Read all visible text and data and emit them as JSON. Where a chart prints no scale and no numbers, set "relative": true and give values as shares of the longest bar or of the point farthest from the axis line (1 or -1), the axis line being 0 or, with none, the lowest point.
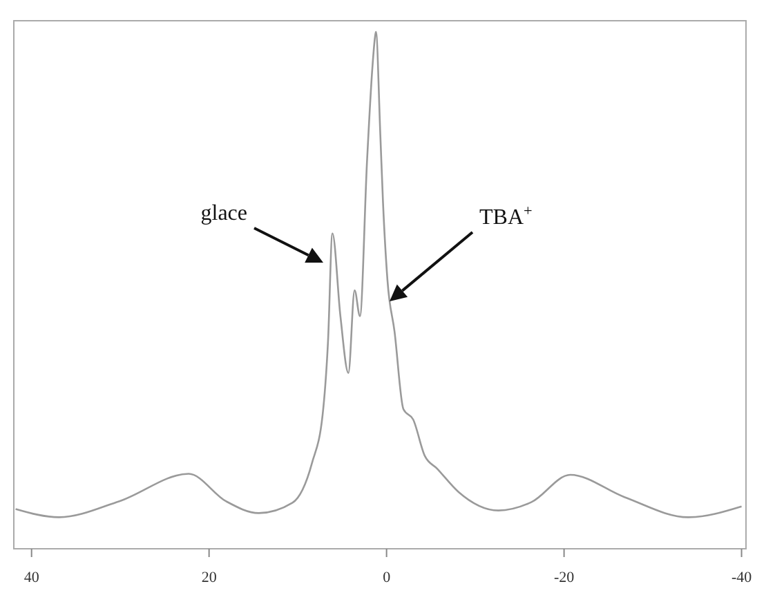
{
  "chart_data": {
    "type": "line",
    "relative": true,
    "x": [
      41.8,
      36.9,
      30.1,
      22.3,
      18.1,
      14.4,
      10.6,
      8.4,
      7.2,
      6.6,
      6.1,
      5.2,
      4.3,
      3.6,
      3.0,
      2.2,
      1.6,
      1.3,
      1.2,
      0.7,
      0.4,
      -0.1,
      -0.9,
      -1.9,
      -3.0,
      -4.3,
      -5.7,
      -8.1,
      -12.6,
      -16.3,
      -20.7,
      -26.8,
      -34.0,
      -40.0
    ],
    "series": [
      {
        "color": "#9a9a9a",
        "values": [
          0.077,
          0.061,
          0.092,
          0.145,
          0.092,
          0.069,
          0.089,
          0.166,
          0.26,
          0.4,
          0.61,
          0.45,
          0.34,
          0.5,
          0.45,
          0.75,
          0.93,
          0.99,
          1,
          0.8,
          0.67,
          0.52,
          0.42,
          0.27,
          0.25,
          0.18,
          0.155,
          0.11,
          0.074,
          0.09,
          0.143,
          0.1,
          0.061,
          0.082
        ]
      }
    ],
    "xlim": [
      42,
      -40.5
    ],
    "xticks": [
      40,
      20,
      0,
      -20,
      -40
    ],
    "annotations": [
      "glace",
      "TBA$^{+}$"
    ]
  }
}
